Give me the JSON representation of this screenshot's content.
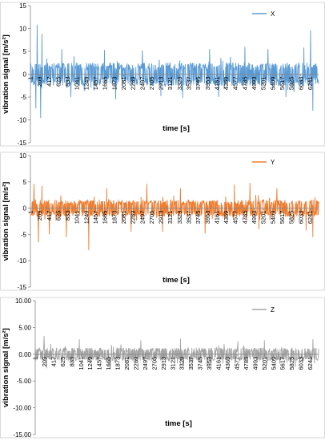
{
  "chart_data": [
    {
      "type": "line",
      "ylabel": "vibration signal [m/s²]",
      "xlabel": "time [s]",
      "ylim": [
        -15,
        15
      ],
      "y_ticks": [
        "15",
        "10",
        "5",
        "0",
        "-5",
        "-10",
        "-15"
      ],
      "x_ticks": [
        "1",
        "209",
        "417",
        "625",
        "833",
        "1041",
        "1249",
        "1457",
        "1665",
        "1873",
        "2081",
        "2289",
        "2497",
        "2705",
        "2913",
        "3121",
        "3329",
        "3537",
        "3745",
        "3953",
        "4161",
        "4369",
        "4577",
        "4785",
        "4993",
        "5201",
        "5409",
        "5617",
        "5825",
        "6033",
        "6241"
      ],
      "x_range": [
        1,
        6430
      ],
      "legend_position": "top-right",
      "series": [
        {
          "name": "X",
          "color": "#5b9bd5",
          "typical_amplitude": 2.5,
          "peaks": [
            [
              150,
              10.8
            ],
            [
              230,
              -9.6
            ],
            [
              260,
              8.8
            ],
            [
              120,
              -7.5
            ],
            [
              700,
              5.5
            ],
            [
              900,
              -5
            ],
            [
              1650,
              5.3
            ],
            [
              1900,
              -5.5
            ],
            [
              2500,
              5.2
            ],
            [
              2913,
              -4.8
            ],
            [
              3400,
              -5.2
            ],
            [
              4000,
              5.5
            ],
            [
              4200,
              -5
            ],
            [
              4785,
              6
            ],
            [
              5300,
              5.5
            ],
            [
              5700,
              -5
            ],
            [
              6100,
              5.8
            ],
            [
              6250,
              9.6
            ],
            [
              6300,
              -8
            ]
          ]
        }
      ]
    },
    {
      "type": "line",
      "ylabel": "vibration signal [m/s²]",
      "xlabel": "time [s]",
      "ylim": [
        -15,
        10
      ],
      "y_ticks": [
        "10",
        "5",
        "0",
        "-5",
        "-10",
        "-15"
      ],
      "x_ticks": [
        "1",
        "209",
        "417",
        "625",
        "833",
        "1041",
        "1249",
        "1457",
        "1665",
        "1873",
        "2081",
        "2289",
        "2497",
        "2705",
        "2913",
        "3121",
        "3329",
        "3537",
        "3745",
        "3953",
        "4161",
        "4369",
        "4577",
        "4785",
        "4993",
        "5201",
        "5409",
        "5617",
        "5825",
        "6033",
        "6241"
      ],
      "x_range": [
        1,
        6430
      ],
      "legend_position": "top-right",
      "series": [
        {
          "name": "Y",
          "color": "#ed7d31",
          "typical_amplitude": 1.6,
          "peaks": [
            [
              80,
              4.6
            ],
            [
              180,
              -6.5
            ],
            [
              260,
              4.2
            ],
            [
              420,
              -5
            ],
            [
              800,
              -5.5
            ],
            [
              1300,
              -8
            ],
            [
              1700,
              3.8
            ],
            [
              2250,
              -4.5
            ],
            [
              2600,
              4.6
            ],
            [
              2950,
              -4.5
            ],
            [
              3350,
              3.8
            ],
            [
              3900,
              -4.8
            ],
            [
              4550,
              4.5
            ],
            [
              4900,
              4.8
            ],
            [
              5100,
              -4
            ],
            [
              5500,
              3.8
            ],
            [
              6150,
              -4.2
            ],
            [
              6300,
              -5.5
            ]
          ]
        }
      ]
    },
    {
      "type": "line",
      "ylabel": "vibration signal [m/s²]",
      "xlabel": "time [s]",
      "ylim": [
        -15,
        10
      ],
      "y_ticks": [
        "10.00",
        "5.00",
        "0.00",
        "-5.00",
        "-10.00",
        "-15.00"
      ],
      "x_ticks": [
        "1",
        "209",
        "417",
        "625",
        "833",
        "1041",
        "1249",
        "1457",
        "1665",
        "1873",
        "2081",
        "2289",
        "2497",
        "2705",
        "2913",
        "3121",
        "3329",
        "3537",
        "3745",
        "3953",
        "4161",
        "4369",
        "4577",
        "4785",
        "4993",
        "5201",
        "5409",
        "5617",
        "5825",
        "6033",
        "6241"
      ],
      "x_range": [
        1,
        6430
      ],
      "legend_position": "top-right",
      "series": [
        {
          "name": "Z",
          "color": "#a5a5a5",
          "typical_amplitude": 1.2,
          "peaks": [
            [
              200,
              3.4
            ],
            [
              260,
              -2.6
            ],
            [
              1000,
              2.8
            ],
            [
              1700,
              -2.5
            ],
            [
              2400,
              2.6
            ],
            [
              3300,
              2.9
            ],
            [
              3900,
              -2.3
            ],
            [
              4600,
              2.4
            ],
            [
              5200,
              2.6
            ],
            [
              5900,
              -2.4
            ],
            [
              6300,
              2.8
            ]
          ]
        }
      ]
    }
  ]
}
